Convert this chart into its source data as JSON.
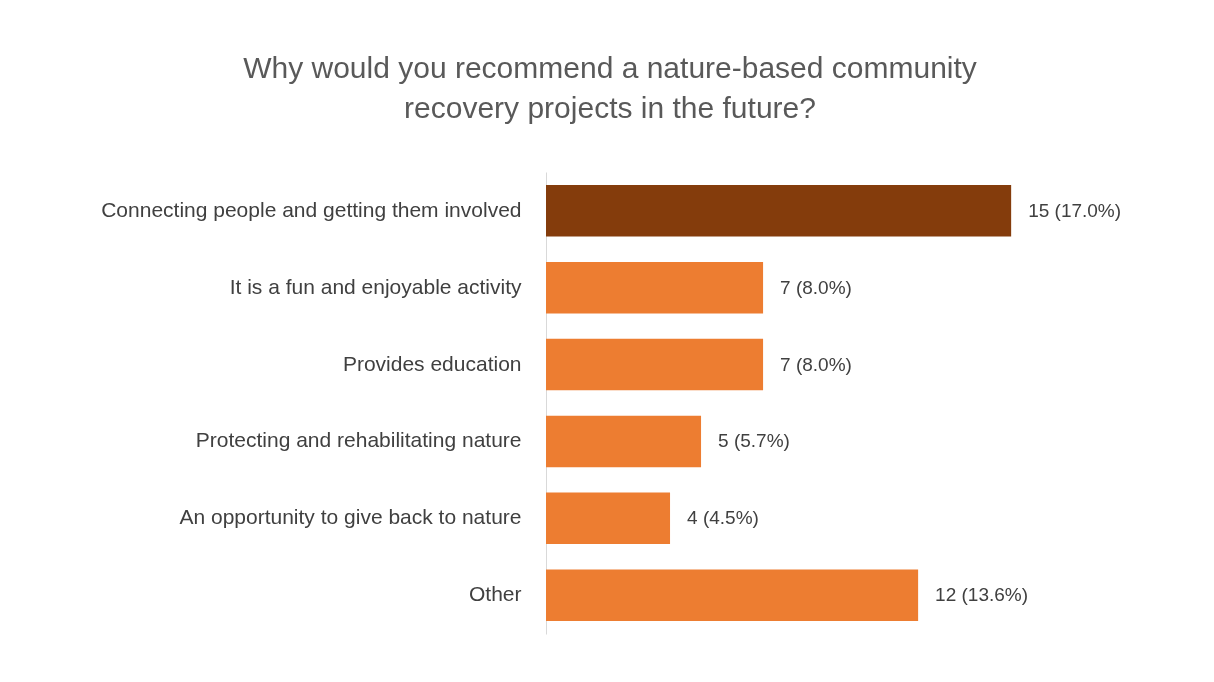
{
  "chart_data": {
    "type": "bar",
    "orientation": "horizontal",
    "title": "Why would you recommend a nature-based community recovery projects in the future?",
    "categories": [
      "Connecting people and getting them involved",
      "It is a fun and enjoyable activity",
      "Provides education",
      "Protecting and rehabilitating nature",
      "An opportunity to give back to nature",
      "Other"
    ],
    "values": [
      15,
      7,
      7,
      5,
      4,
      12
    ],
    "value_labels": [
      "15 (17.0%)",
      "7 (8.0%)",
      "7 (8.0%)",
      "5 (5.7%)",
      "4 (4.5%)",
      "12 (13.6%)"
    ],
    "colors": [
      "#843c0c",
      "#ed7d31",
      "#ed7d31",
      "#ed7d31",
      "#ed7d31",
      "#ed7d31"
    ]
  }
}
